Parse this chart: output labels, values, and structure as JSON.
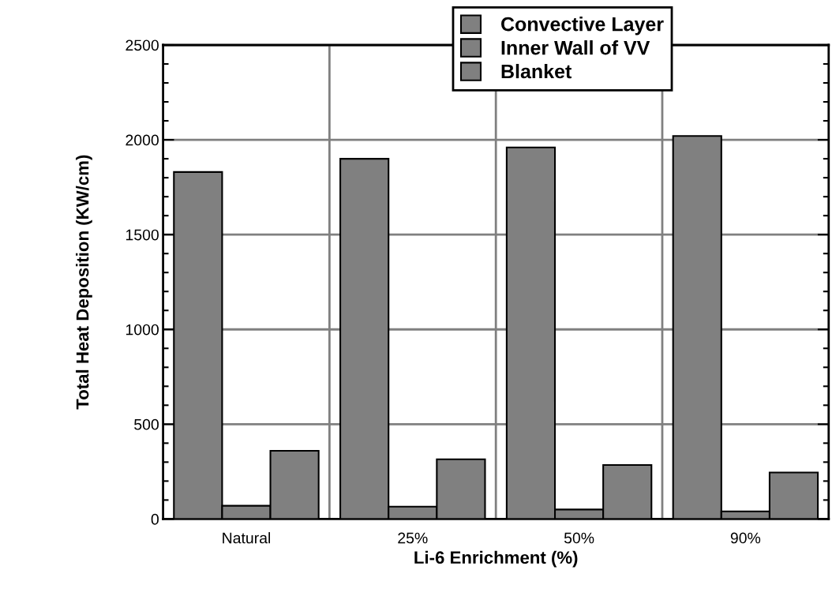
{
  "chart_data": {
    "type": "bar",
    "xlabel": "Li-6 Enrichment (%)",
    "ylabel": "Total Heat Deposition (KW/cm)",
    "categories": [
      "Natural",
      "25%",
      "50%",
      "90%"
    ],
    "series": [
      {
        "name": "Convective Layer",
        "color": "#808080",
        "values": [
          1830,
          1900,
          1960,
          2020
        ]
      },
      {
        "name": "Inner Wall of VV",
        "color": "#808080",
        "values": [
          70,
          65,
          50,
          40
        ]
      },
      {
        "name": "Blanket",
        "color": "#808080",
        "values": [
          360,
          315,
          285,
          245
        ]
      }
    ],
    "ylim": [
      0,
      2500
    ],
    "yticks": [
      0,
      500,
      1000,
      1500,
      2000,
      2500
    ],
    "grid": true,
    "legend": "top"
  }
}
